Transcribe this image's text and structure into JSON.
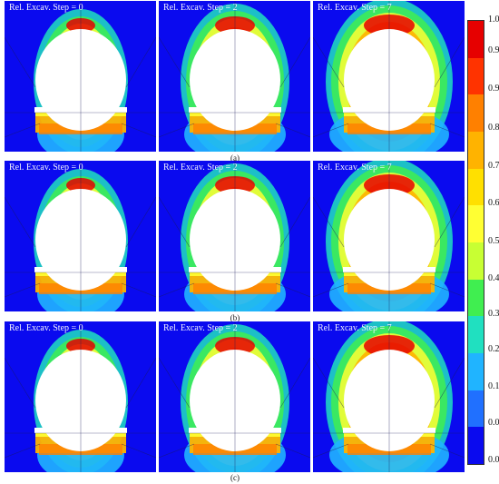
{
  "figure": {
    "rows": [
      {
        "label": "(a)",
        "panels": [
          {
            "title": "Rel. Excav. Step = 0",
            "step": 0
          },
          {
            "title": "Rel. Excav. Step = 2",
            "step": 2
          },
          {
            "title": "Rel. Excav. Step = 7",
            "step": 7
          }
        ]
      },
      {
        "label": "(b)",
        "panels": [
          {
            "title": "Rel. Excav. Step = 0",
            "step": 0
          },
          {
            "title": "Rel. Excav. Step = 2",
            "step": 2
          },
          {
            "title": "Rel. Excav. Step = 7",
            "step": 7
          }
        ]
      },
      {
        "label": "(c)",
        "panels": [
          {
            "title": "Rel. Excav. Step = 0",
            "step": 0
          },
          {
            "title": "Rel. Excav. Step = 2",
            "step": 2
          },
          {
            "title": "Rel. Excav. Step = 7",
            "step": 7
          }
        ]
      }
    ]
  },
  "colorbar": {
    "ticks": [
      "1.00",
      "0.99",
      "0.90",
      "0.80",
      "0.70",
      "0.60",
      "0.50",
      "0.40",
      "0.30",
      "0.20",
      "0.10",
      "0.01",
      "0.00"
    ],
    "colors": [
      "#e60000",
      "#ff3300",
      "#ff8000",
      "#ffb300",
      "#ffe000",
      "#ffff33",
      "#c8ff33",
      "#40ee50",
      "#20e0c0",
      "#20b4ff",
      "#2070ff",
      "#0a0aef"
    ]
  }
}
